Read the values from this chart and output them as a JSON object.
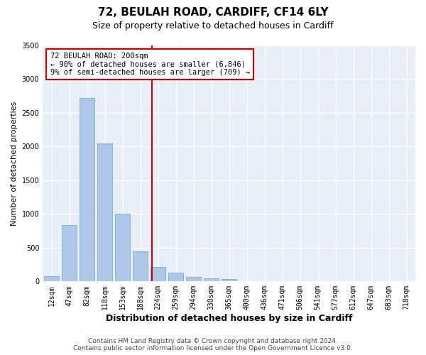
{
  "title_line1": "72, BEULAH ROAD, CARDIFF, CF14 6LY",
  "title_line2": "Size of property relative to detached houses in Cardiff",
  "xlabel": "Distribution of detached houses by size in Cardiff",
  "ylabel": "Number of detached properties",
  "categories": [
    "12sqm",
    "47sqm",
    "82sqm",
    "118sqm",
    "153sqm",
    "188sqm",
    "224sqm",
    "259sqm",
    "294sqm",
    "330sqm",
    "365sqm",
    "400sqm",
    "436sqm",
    "471sqm",
    "506sqm",
    "541sqm",
    "577sqm",
    "612sqm",
    "647sqm",
    "683sqm",
    "718sqm"
  ],
  "values": [
    75,
    840,
    2720,
    2050,
    1000,
    450,
    215,
    130,
    65,
    50,
    35,
    0,
    0,
    0,
    0,
    0,
    0,
    0,
    0,
    0,
    0
  ],
  "bar_color": "#aec6e8",
  "bar_edge_color": "#7aaed0",
  "vline_x": 5.67,
  "vline_color": "#cc0000",
  "annotation_text": "72 BEULAH ROAD: 200sqm\n← 90% of detached houses are smaller (6,846)\n9% of semi-detached houses are larger (709) →",
  "annotation_box_color": "#cc0000",
  "ylim": [
    0,
    3500
  ],
  "yticks": [
    0,
    500,
    1000,
    1500,
    2000,
    2500,
    3000,
    3500
  ],
  "footer_line1": "Contains HM Land Registry data © Crown copyright and database right 2024.",
  "footer_line2": "Contains public sector information licensed under the Open Government Licence v3.0.",
  "bg_color": "#e8eef8",
  "grid_color": "#ffffff",
  "title_fontsize": 11,
  "subtitle_fontsize": 9,
  "ylabel_fontsize": 8,
  "xlabel_fontsize": 9,
  "tick_fontsize": 7,
  "annotation_fontsize": 7.5,
  "footer_fontsize": 6.5
}
